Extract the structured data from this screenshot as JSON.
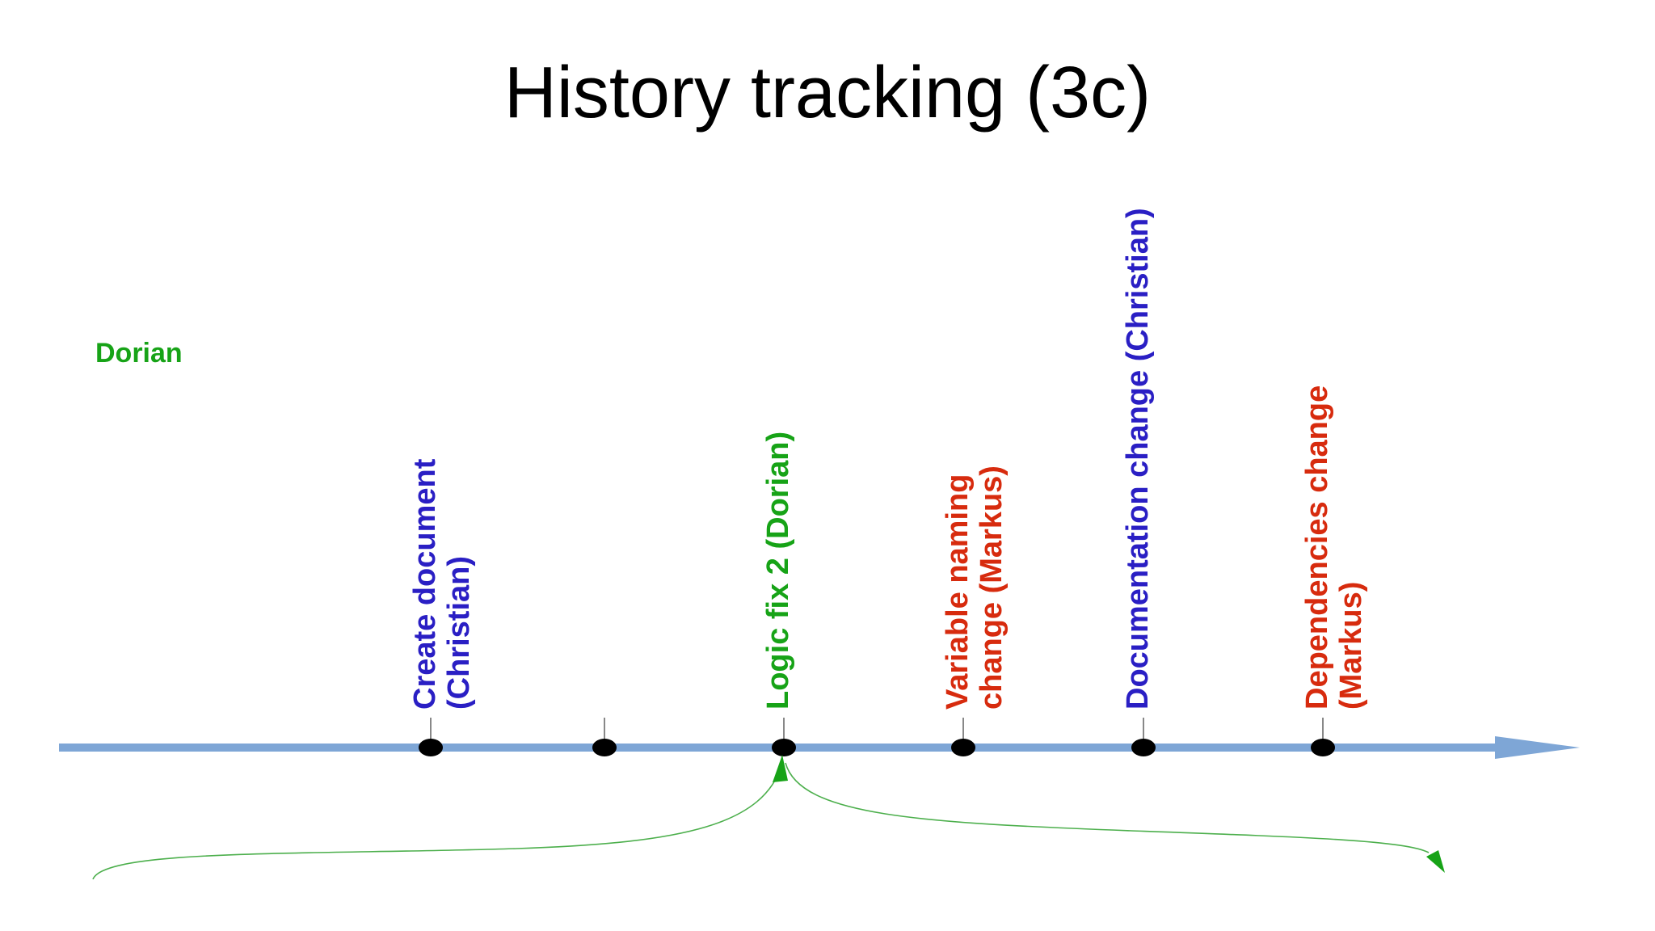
{
  "title": "History tracking (3c)",
  "side_label": "Dorian",
  "colors": {
    "timeline": "#7ea6d6",
    "dot": "#000000",
    "tick": "#555555",
    "christian": "#2a1fc4",
    "dorian": "#17a317",
    "markus": "#d72b0e",
    "branch_curve": "#4caf4c"
  },
  "events": [
    {
      "lines": [
        "Create document",
        "(Christian)"
      ],
      "author": "christian"
    },
    {
      "lines": [],
      "author": ""
    },
    {
      "lines": [
        "Logic fix 2 (Dorian)"
      ],
      "author": "dorian"
    },
    {
      "lines": [
        "Variable naming",
        "change (Markus)"
      ],
      "author": "markus"
    },
    {
      "lines": [
        "Documentation change (Christian)"
      ],
      "author": "christian"
    },
    {
      "lines": [
        "Dependencies change",
        "(Markus)"
      ],
      "author": "markus"
    }
  ]
}
